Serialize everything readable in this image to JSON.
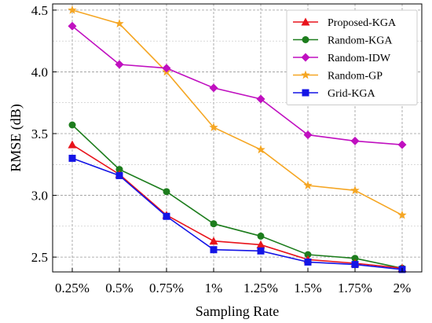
{
  "chart_data": {
    "type": "line",
    "xlabel": "Sampling Rate",
    "ylabel": "RMSE (dB)",
    "categories": [
      "0.25%",
      "0.5%",
      "0.75%",
      "1%",
      "1.25%",
      "1.5%",
      "1.75%",
      "2%"
    ],
    "ylim": [
      2.38,
      4.55
    ],
    "yticks": [
      2.5,
      3.0,
      3.5,
      4.0,
      4.5
    ],
    "ytick_labels": [
      "2.5",
      "3.0",
      "3.5",
      "4.0",
      "4.5"
    ],
    "grid": true,
    "legend_position": "top-right",
    "series": [
      {
        "name": "Proposed-KGA",
        "color": "#e8141c",
        "marker": "triangle",
        "values": [
          3.41,
          3.17,
          2.84,
          2.63,
          2.6,
          2.48,
          2.45,
          2.41
        ]
      },
      {
        "name": "Random-KGA",
        "color": "#1d7d1d",
        "marker": "circle",
        "values": [
          3.57,
          3.21,
          3.03,
          2.77,
          2.67,
          2.52,
          2.49,
          2.41
        ]
      },
      {
        "name": "Random-IDW",
        "color": "#c010c0",
        "marker": "diamond",
        "values": [
          4.37,
          4.06,
          4.03,
          3.87,
          3.78,
          3.49,
          3.44,
          3.41
        ]
      },
      {
        "name": "Random-GP",
        "color": "#f5a623",
        "marker": "star",
        "values": [
          4.5,
          4.39,
          4.0,
          3.55,
          3.37,
          3.08,
          3.04,
          2.84
        ]
      },
      {
        "name": "Grid-KGA",
        "color": "#1414e6",
        "marker": "square",
        "values": [
          3.3,
          3.16,
          2.83,
          2.56,
          2.55,
          2.46,
          2.44,
          2.4
        ]
      }
    ]
  }
}
